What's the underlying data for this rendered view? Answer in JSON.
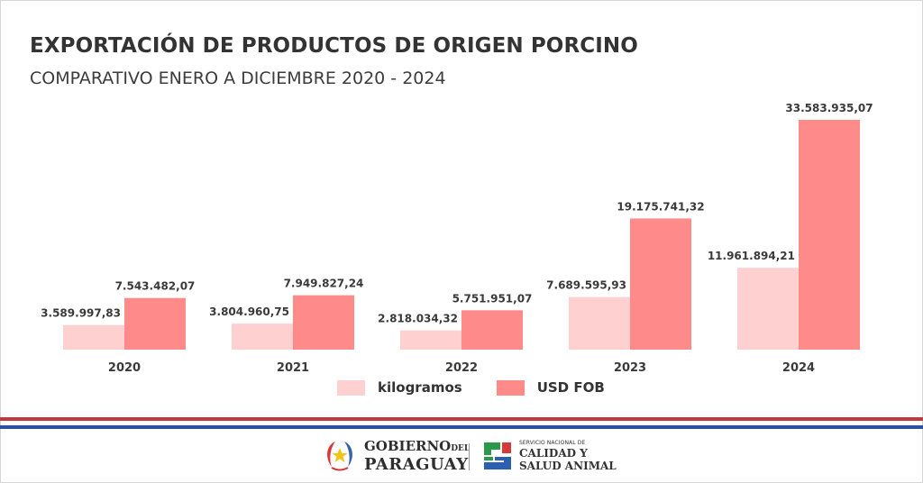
{
  "header": {
    "title": "EXPORTACIÓN DE PRODUCTOS DE ORIGEN PORCINO",
    "subtitle": "COMPARATIVO ENERO A DICIEMBRE 2020 - 2024"
  },
  "chart_data": {
    "type": "bar",
    "title": "EXPORTACIÓN DE PRODUCTOS DE ORIGEN PORCINO",
    "subtitle": "COMPARATIVO ENERO A DICIEMBRE 2020 - 2024",
    "xlabel": "",
    "ylabel": "",
    "categories": [
      "2020",
      "2021",
      "2022",
      "2023",
      "2024"
    ],
    "series": [
      {
        "name": "kilogramos",
        "color": "#ffd0d0",
        "values": [
          3589997.83,
          3804960.75,
          2818034.32,
          7689595.93,
          11961894.21
        ],
        "labels": [
          "3.589.997,83",
          "3.804.960,75",
          "2.818.034,32",
          "7.689.595,93",
          "11.961.894,21"
        ]
      },
      {
        "name": "USD FOB",
        "color": "#ff8a8a",
        "values": [
          7543482.07,
          7949827.24,
          5751951.07,
          19175741.32,
          33583935.07
        ],
        "labels": [
          "7.543.482,07",
          "7.949.827,24",
          "5.751.951,07",
          "19.175.741,32",
          "33.583.935,07"
        ]
      }
    ],
    "ylim": [
      0,
      33583935.07
    ],
    "grid": false,
    "y_axis_visible": false,
    "legend_position": "bottom-center"
  },
  "legend": {
    "items": [
      {
        "label": "kilogramos",
        "color": "#ffd0d0"
      },
      {
        "label": "USD FOB",
        "color": "#ff8a8a"
      }
    ]
  },
  "footer": {
    "stripe_colors": {
      "red": "#c0393f",
      "blue": "#2b4fa3"
    },
    "gov_logo": {
      "icon": "national-seal-star-icon",
      "line1": "GOBIERNO",
      "line1_small": "DEL",
      "line2": "PARAGUAY"
    },
    "senacsa_logo": {
      "icon": "senacsa-cross-icon",
      "line1": "SERVICIO NACIONAL DE",
      "line2": "CALIDAD Y",
      "line3": "SALUD ANIMAL"
    }
  }
}
